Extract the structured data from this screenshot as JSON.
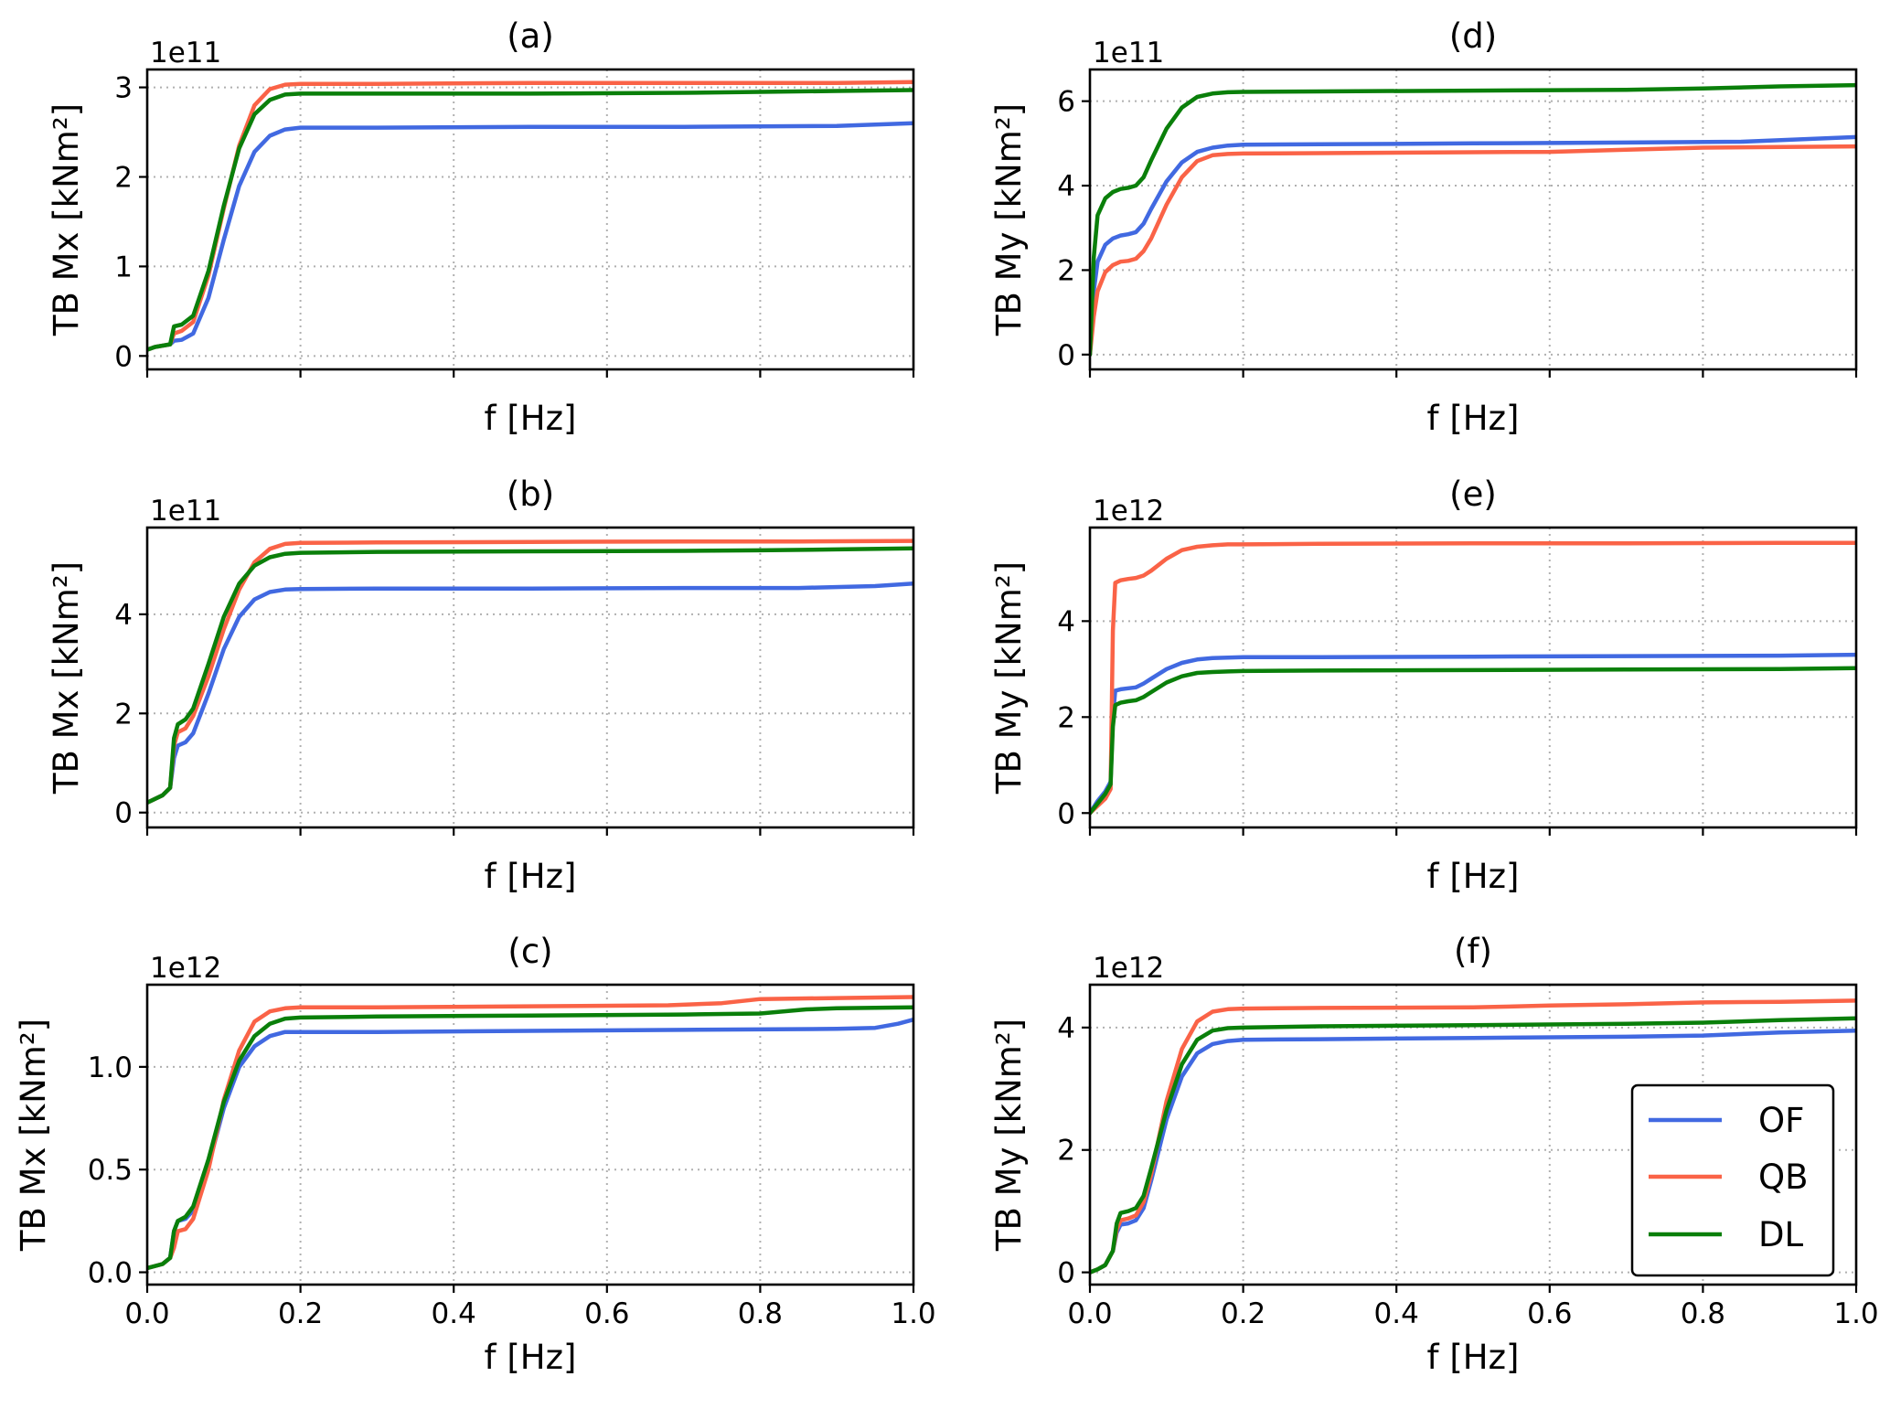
{
  "figure": {
    "legend": {
      "entries": [
        {
          "name": "OF",
          "color": "#4169e1"
        },
        {
          "name": "QB",
          "color": "#fa6347"
        },
        {
          "name": "DL",
          "color": "#0a7f0a"
        }
      ]
    }
  },
  "chart_data": [
    {
      "type": "line",
      "panel": "a",
      "title": "(a)",
      "xlabel": "f [Hz]",
      "ylabel": "TB Mx [kNm²]",
      "offset_text": "1e11",
      "xlim": [
        0,
        1
      ],
      "ylim": [
        -0.15,
        3.2
      ],
      "xticks": [
        0,
        0.2,
        0.4,
        0.6,
        0.8,
        1.0
      ],
      "xtick_labels": [],
      "yticks": [
        0,
        1,
        2,
        3
      ],
      "ytick_labels": [
        "0",
        "1",
        "2",
        "3"
      ],
      "grid": true,
      "series": [
        {
          "name": "OF",
          "x": [
            0,
            0.01,
            0.03,
            0.035,
            0.045,
            0.06,
            0.08,
            0.1,
            0.12,
            0.14,
            0.16,
            0.18,
            0.2,
            0.3,
            0.5,
            0.7,
            0.9,
            1.0
          ],
          "y": [
            0.07,
            0.1,
            0.13,
            0.17,
            0.18,
            0.25,
            0.65,
            1.3,
            1.9,
            2.28,
            2.46,
            2.53,
            2.55,
            2.55,
            2.56,
            2.56,
            2.57,
            2.6
          ]
        },
        {
          "name": "QB",
          "x": [
            0,
            0.01,
            0.03,
            0.035,
            0.045,
            0.06,
            0.08,
            0.1,
            0.12,
            0.14,
            0.16,
            0.18,
            0.2,
            0.3,
            0.5,
            0.7,
            0.9,
            1.0
          ],
          "y": [
            0.07,
            0.1,
            0.13,
            0.25,
            0.28,
            0.38,
            0.9,
            1.65,
            2.35,
            2.8,
            2.98,
            3.03,
            3.04,
            3.04,
            3.05,
            3.05,
            3.05,
            3.06
          ]
        },
        {
          "name": "DL",
          "x": [
            0,
            0.01,
            0.03,
            0.035,
            0.045,
            0.06,
            0.08,
            0.1,
            0.12,
            0.14,
            0.16,
            0.18,
            0.2,
            0.3,
            0.5,
            0.7,
            0.8,
            0.9,
            1.0
          ],
          "y": [
            0.07,
            0.1,
            0.13,
            0.33,
            0.35,
            0.45,
            0.95,
            1.68,
            2.32,
            2.7,
            2.86,
            2.92,
            2.93,
            2.93,
            2.93,
            2.94,
            2.95,
            2.96,
            2.97
          ]
        }
      ]
    },
    {
      "type": "line",
      "panel": "b",
      "title": "(b)",
      "xlabel": "f [Hz]",
      "ylabel": "TB Mx [kNm²]",
      "offset_text": "1e11",
      "xlim": [
        0,
        1
      ],
      "ylim": [
        -0.3,
        5.75
      ],
      "xticks": [
        0,
        0.2,
        0.4,
        0.6,
        0.8,
        1.0
      ],
      "xtick_labels": [],
      "yticks": [
        0,
        2,
        4
      ],
      "ytick_labels": [
        "0",
        "2",
        "4"
      ],
      "grid": true,
      "series": [
        {
          "name": "OF",
          "x": [
            0,
            0.02,
            0.03,
            0.035,
            0.04,
            0.05,
            0.06,
            0.08,
            0.1,
            0.12,
            0.14,
            0.16,
            0.18,
            0.2,
            0.3,
            0.5,
            0.7,
            0.85,
            0.95,
            1.0
          ],
          "y": [
            0.2,
            0.35,
            0.5,
            1.1,
            1.35,
            1.42,
            1.6,
            2.4,
            3.3,
            3.95,
            4.3,
            4.45,
            4.5,
            4.51,
            4.52,
            4.52,
            4.53,
            4.53,
            4.57,
            4.62
          ]
        },
        {
          "name": "QB",
          "x": [
            0,
            0.02,
            0.03,
            0.035,
            0.04,
            0.05,
            0.06,
            0.08,
            0.1,
            0.12,
            0.14,
            0.16,
            0.18,
            0.2,
            0.3,
            0.5,
            0.7,
            0.85,
            1.0
          ],
          "y": [
            0.2,
            0.35,
            0.5,
            1.35,
            1.62,
            1.7,
            1.95,
            2.75,
            3.7,
            4.5,
            5.05,
            5.32,
            5.42,
            5.44,
            5.45,
            5.46,
            5.47,
            5.47,
            5.48
          ]
        },
        {
          "name": "DL",
          "x": [
            0,
            0.02,
            0.03,
            0.035,
            0.04,
            0.05,
            0.06,
            0.08,
            0.1,
            0.12,
            0.14,
            0.16,
            0.18,
            0.2,
            0.3,
            0.5,
            0.7,
            0.8,
            0.9,
            1.0
          ],
          "y": [
            0.2,
            0.35,
            0.5,
            1.5,
            1.78,
            1.88,
            2.1,
            3.0,
            3.95,
            4.62,
            4.98,
            5.15,
            5.22,
            5.24,
            5.26,
            5.27,
            5.28,
            5.29,
            5.31,
            5.33
          ]
        }
      ]
    },
    {
      "type": "line",
      "panel": "c",
      "title": "(c)",
      "xlabel": "f [Hz]",
      "ylabel": "TB Mx [kNm²]",
      "offset_text": "1e12",
      "xlim": [
        0,
        1
      ],
      "ylim": [
        -0.06,
        1.4
      ],
      "xticks": [
        0,
        0.2,
        0.4,
        0.6,
        0.8,
        1.0
      ],
      "xtick_labels": [
        "0.0",
        "0.2",
        "0.4",
        "0.6",
        "0.8",
        "1.0"
      ],
      "yticks": [
        0,
        0.5,
        1.0
      ],
      "ytick_labels": [
        "0.0",
        "0.5",
        "1.0"
      ],
      "grid": true,
      "series": [
        {
          "name": "OF",
          "x": [
            0,
            0.02,
            0.03,
            0.035,
            0.04,
            0.05,
            0.06,
            0.08,
            0.1,
            0.12,
            0.14,
            0.16,
            0.18,
            0.2,
            0.3,
            0.5,
            0.7,
            0.9,
            0.95,
            0.98,
            1.0
          ],
          "y": [
            0.02,
            0.04,
            0.07,
            0.2,
            0.25,
            0.26,
            0.3,
            0.52,
            0.8,
            1.0,
            1.1,
            1.15,
            1.17,
            1.17,
            1.17,
            1.175,
            1.18,
            1.185,
            1.19,
            1.21,
            1.23
          ]
        },
        {
          "name": "QB",
          "x": [
            0,
            0.02,
            0.03,
            0.035,
            0.04,
            0.05,
            0.06,
            0.08,
            0.1,
            0.12,
            0.14,
            0.16,
            0.18,
            0.2,
            0.3,
            0.5,
            0.68,
            0.75,
            0.8,
            0.9,
            1.0
          ],
          "y": [
            0.02,
            0.04,
            0.07,
            0.12,
            0.2,
            0.21,
            0.26,
            0.5,
            0.84,
            1.08,
            1.22,
            1.27,
            1.285,
            1.29,
            1.29,
            1.295,
            1.3,
            1.31,
            1.33,
            1.335,
            1.34
          ]
        },
        {
          "name": "DL",
          "x": [
            0,
            0.02,
            0.03,
            0.035,
            0.04,
            0.05,
            0.06,
            0.08,
            0.1,
            0.12,
            0.14,
            0.16,
            0.18,
            0.2,
            0.3,
            0.5,
            0.7,
            0.8,
            0.86,
            0.9,
            1.0
          ],
          "y": [
            0.02,
            0.04,
            0.07,
            0.2,
            0.25,
            0.27,
            0.32,
            0.55,
            0.83,
            1.03,
            1.15,
            1.21,
            1.235,
            1.24,
            1.245,
            1.25,
            1.255,
            1.26,
            1.28,
            1.285,
            1.29
          ]
        }
      ]
    },
    {
      "type": "line",
      "panel": "d",
      "title": "(d)",
      "xlabel": "f [Hz]",
      "ylabel": "TB My [kNm²]",
      "offset_text": "1e11",
      "xlim": [
        0,
        1
      ],
      "ylim": [
        -0.35,
        6.75
      ],
      "xticks": [
        0,
        0.2,
        0.4,
        0.6,
        0.8,
        1.0
      ],
      "xtick_labels": [],
      "yticks": [
        0,
        2,
        4,
        6
      ],
      "ytick_labels": [
        "0",
        "2",
        "4",
        "6"
      ],
      "grid": true,
      "series": [
        {
          "name": "OF",
          "x": [
            0,
            0.005,
            0.01,
            0.02,
            0.03,
            0.04,
            0.05,
            0.06,
            0.07,
            0.08,
            0.1,
            0.12,
            0.14,
            0.16,
            0.18,
            0.2,
            0.3,
            0.5,
            0.7,
            0.85,
            1.0
          ],
          "y": [
            0.0,
            1.5,
            2.2,
            2.6,
            2.75,
            2.82,
            2.85,
            2.9,
            3.1,
            3.45,
            4.1,
            4.55,
            4.8,
            4.9,
            4.95,
            4.97,
            4.98,
            5.0,
            5.02,
            5.04,
            5.15
          ]
        },
        {
          "name": "QB",
          "x": [
            0,
            0.005,
            0.01,
            0.02,
            0.03,
            0.04,
            0.05,
            0.06,
            0.07,
            0.08,
            0.1,
            0.12,
            0.14,
            0.16,
            0.18,
            0.2,
            0.3,
            0.5,
            0.6,
            0.7,
            0.8,
            1.0
          ],
          "y": [
            0.0,
            0.9,
            1.5,
            1.95,
            2.12,
            2.2,
            2.22,
            2.27,
            2.45,
            2.75,
            3.55,
            4.2,
            4.58,
            4.72,
            4.75,
            4.76,
            4.77,
            4.79,
            4.8,
            4.85,
            4.9,
            4.93
          ]
        },
        {
          "name": "DL",
          "x": [
            0,
            0.005,
            0.01,
            0.02,
            0.03,
            0.04,
            0.05,
            0.06,
            0.07,
            0.08,
            0.1,
            0.12,
            0.14,
            0.16,
            0.18,
            0.2,
            0.3,
            0.5,
            0.7,
            0.8,
            0.9,
            1.0
          ],
          "y": [
            0.0,
            2.3,
            3.3,
            3.7,
            3.85,
            3.92,
            3.95,
            4.0,
            4.2,
            4.6,
            5.35,
            5.85,
            6.1,
            6.18,
            6.21,
            6.22,
            6.23,
            6.25,
            6.27,
            6.3,
            6.35,
            6.38
          ]
        }
      ]
    },
    {
      "type": "line",
      "panel": "e",
      "title": "(e)",
      "xlabel": "f [Hz]",
      "ylabel": "TB My [kNm²]",
      "offset_text": "1e12",
      "xlim": [
        0,
        1
      ],
      "ylim": [
        -0.3,
        5.95
      ],
      "xticks": [
        0,
        0.2,
        0.4,
        0.6,
        0.8,
        1.0
      ],
      "xtick_labels": [],
      "yticks": [
        0,
        2,
        4
      ],
      "ytick_labels": [
        "0",
        "2",
        "4"
      ],
      "grid": true,
      "series": [
        {
          "name": "OF",
          "x": [
            0,
            0.01,
            0.02,
            0.027,
            0.03,
            0.033,
            0.04,
            0.05,
            0.06,
            0.07,
            0.08,
            0.1,
            0.12,
            0.14,
            0.16,
            0.18,
            0.2,
            0.3,
            0.5,
            0.7,
            0.9,
            1.0
          ],
          "y": [
            0.0,
            0.25,
            0.45,
            0.65,
            2.0,
            2.55,
            2.58,
            2.6,
            2.62,
            2.7,
            2.8,
            3.0,
            3.13,
            3.2,
            3.23,
            3.24,
            3.25,
            3.25,
            3.26,
            3.27,
            3.28,
            3.3
          ]
        },
        {
          "name": "QB",
          "x": [
            0,
            0.01,
            0.02,
            0.027,
            0.03,
            0.033,
            0.04,
            0.05,
            0.06,
            0.07,
            0.08,
            0.1,
            0.12,
            0.14,
            0.16,
            0.18,
            0.2,
            0.3,
            0.5,
            0.7,
            0.9,
            1.0
          ],
          "y": [
            0.0,
            0.15,
            0.3,
            0.5,
            3.8,
            4.8,
            4.85,
            4.88,
            4.9,
            4.95,
            5.05,
            5.3,
            5.48,
            5.55,
            5.58,
            5.6,
            5.6,
            5.61,
            5.62,
            5.62,
            5.63,
            5.63
          ]
        },
        {
          "name": "DL",
          "x": [
            0,
            0.01,
            0.02,
            0.027,
            0.03,
            0.033,
            0.04,
            0.05,
            0.06,
            0.07,
            0.08,
            0.1,
            0.12,
            0.14,
            0.16,
            0.18,
            0.2,
            0.3,
            0.5,
            0.7,
            0.9,
            1.0
          ],
          "y": [
            0.0,
            0.2,
            0.4,
            0.6,
            1.8,
            2.25,
            2.3,
            2.33,
            2.35,
            2.42,
            2.52,
            2.72,
            2.85,
            2.92,
            2.94,
            2.95,
            2.96,
            2.97,
            2.98,
            2.99,
            3.0,
            3.02
          ]
        }
      ]
    },
    {
      "type": "line",
      "panel": "f",
      "title": "(f)",
      "xlabel": "f [Hz]",
      "ylabel": "TB My [kNm²]",
      "offset_text": "1e12",
      "xlim": [
        0,
        1
      ],
      "ylim": [
        -0.2,
        4.7
      ],
      "xticks": [
        0,
        0.2,
        0.4,
        0.6,
        0.8,
        1.0
      ],
      "xtick_labels": [
        "0.0",
        "0.2",
        "0.4",
        "0.6",
        "0.8",
        "1.0"
      ],
      "yticks": [
        0,
        2,
        4
      ],
      "ytick_labels": [
        "0",
        "2",
        "4"
      ],
      "grid": true,
      "legend_position": "lower-right",
      "series": [
        {
          "name": "OF",
          "x": [
            0,
            0.01,
            0.02,
            0.03,
            0.035,
            0.04,
            0.05,
            0.06,
            0.07,
            0.08,
            0.1,
            0.12,
            0.14,
            0.16,
            0.18,
            0.2,
            0.3,
            0.5,
            0.7,
            0.8,
            0.9,
            1.0
          ],
          "y": [
            0.0,
            0.05,
            0.12,
            0.35,
            0.65,
            0.78,
            0.8,
            0.85,
            1.05,
            1.5,
            2.5,
            3.2,
            3.58,
            3.73,
            3.78,
            3.8,
            3.81,
            3.83,
            3.85,
            3.87,
            3.92,
            3.95
          ]
        },
        {
          "name": "QB",
          "x": [
            0,
            0.01,
            0.02,
            0.03,
            0.035,
            0.04,
            0.05,
            0.06,
            0.07,
            0.08,
            0.1,
            0.12,
            0.14,
            0.16,
            0.18,
            0.2,
            0.3,
            0.5,
            0.6,
            0.7,
            0.8,
            0.9,
            1.0
          ],
          "y": [
            0.0,
            0.05,
            0.12,
            0.35,
            0.7,
            0.85,
            0.88,
            0.93,
            1.15,
            1.6,
            2.8,
            3.65,
            4.1,
            4.26,
            4.3,
            4.31,
            4.32,
            4.33,
            4.36,
            4.38,
            4.41,
            4.42,
            4.44
          ]
        },
        {
          "name": "DL",
          "x": [
            0,
            0.01,
            0.02,
            0.03,
            0.035,
            0.04,
            0.05,
            0.06,
            0.07,
            0.08,
            0.1,
            0.12,
            0.14,
            0.16,
            0.18,
            0.2,
            0.3,
            0.5,
            0.7,
            0.8,
            0.9,
            1.0
          ],
          "y": [
            0.0,
            0.05,
            0.12,
            0.35,
            0.8,
            0.97,
            1.0,
            1.05,
            1.25,
            1.7,
            2.65,
            3.4,
            3.8,
            3.95,
            3.99,
            4.0,
            4.02,
            4.04,
            4.06,
            4.08,
            4.12,
            4.15
          ]
        }
      ]
    }
  ]
}
